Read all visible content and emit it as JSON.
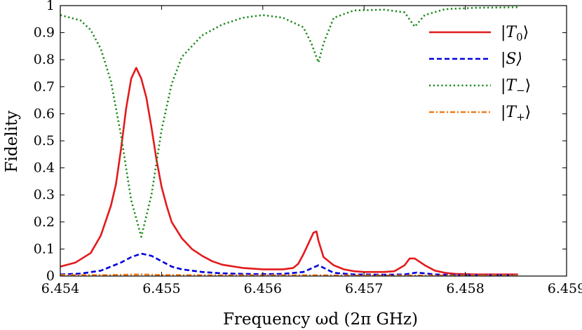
{
  "chart_data": {
    "type": "line",
    "title": "",
    "xlabel": "Frequency ωd (2π GHz)",
    "ylabel": "Fidelity",
    "xlim": [
      6.454,
      6.459
    ],
    "ylim": [
      0,
      1
    ],
    "xticks": [
      "6.454",
      "6.455",
      "6.456",
      "6.457",
      "6.458",
      "6.459"
    ],
    "yticks": [
      "0",
      "0.1",
      "0.2",
      "0.3",
      "0.4",
      "0.5",
      "0.6",
      "0.7",
      "0.8",
      "0.9",
      "1"
    ],
    "grid": false,
    "legend_position": "top-right",
    "series": [
      {
        "name": "|T0⟩",
        "legend_parts": [
          "|T",
          "0",
          "⟩"
        ],
        "color": "#e31a1c",
        "style": "solid",
        "x": [
          6.454,
          6.45415,
          6.4543,
          6.4544,
          6.4545,
          6.45455,
          6.4546,
          6.45465,
          6.4547,
          6.45475,
          6.4548,
          6.45485,
          6.4549,
          6.45495,
          6.455,
          6.45505,
          6.4551,
          6.4552,
          6.4553,
          6.4554,
          6.4555,
          6.4556,
          6.4558,
          6.456,
          6.4562,
          6.4563,
          6.45635,
          6.4564,
          6.45645,
          6.4565,
          6.45653,
          6.45655,
          6.4566,
          6.4567,
          6.4568,
          6.4569,
          6.457,
          6.4572,
          6.4573,
          6.4574,
          6.45745,
          6.4575,
          6.4576,
          6.4577,
          6.4578,
          6.4579,
          6.4581,
          6.4583,
          6.45852
        ],
        "y": [
          0.035,
          0.05,
          0.085,
          0.15,
          0.26,
          0.34,
          0.47,
          0.62,
          0.73,
          0.77,
          0.73,
          0.66,
          0.55,
          0.43,
          0.33,
          0.26,
          0.2,
          0.14,
          0.1,
          0.075,
          0.055,
          0.042,
          0.03,
          0.025,
          0.025,
          0.03,
          0.045,
          0.08,
          0.12,
          0.16,
          0.165,
          0.13,
          0.07,
          0.04,
          0.025,
          0.018,
          0.015,
          0.015,
          0.018,
          0.04,
          0.065,
          0.065,
          0.04,
          0.02,
          0.012,
          0.008,
          0.006,
          0.006,
          0.006
        ]
      },
      {
        "name": "|S⟩",
        "legend_parts": [
          "|S⟩",
          "",
          ""
        ],
        "color": "#0000dd",
        "style": "dashed",
        "x": [
          6.454,
          6.4542,
          6.4544,
          6.4546,
          6.4547,
          6.4548,
          6.4549,
          6.455,
          6.4551,
          6.4552,
          6.4554,
          6.4556,
          6.4558,
          6.456,
          6.4562,
          6.4564,
          6.45655,
          6.4567,
          6.4569,
          6.4572,
          6.4574,
          6.45752,
          6.4577,
          6.4579,
          6.4582,
          6.45852
        ],
        "y": [
          0.006,
          0.009,
          0.02,
          0.05,
          0.07,
          0.083,
          0.075,
          0.055,
          0.035,
          0.025,
          0.015,
          0.01,
          0.008,
          0.007,
          0.008,
          0.015,
          0.04,
          0.012,
          0.006,
          0.005,
          0.006,
          0.013,
          0.006,
          0.004,
          0.003,
          0.003
        ]
      },
      {
        "name": "|T−⟩",
        "legend_parts": [
          "|T",
          "−",
          "⟩"
        ],
        "color": "#1a8a1a",
        "style": "dotted",
        "x": [
          6.454,
          6.4542,
          6.4543,
          6.4544,
          6.4545,
          6.4546,
          6.4547,
          6.4548,
          6.4549,
          6.455,
          6.4551,
          6.4552,
          6.4554,
          6.4556,
          6.4558,
          6.456,
          6.4562,
          6.4564,
          6.45648,
          6.45655,
          6.4566,
          6.4567,
          6.4569,
          6.4572,
          6.4574,
          6.4575,
          6.4576,
          6.4578,
          6.4581,
          6.45852
        ],
        "y": [
          0.965,
          0.945,
          0.91,
          0.84,
          0.72,
          0.52,
          0.28,
          0.145,
          0.3,
          0.54,
          0.71,
          0.81,
          0.89,
          0.93,
          0.955,
          0.965,
          0.955,
          0.92,
          0.86,
          0.79,
          0.86,
          0.955,
          0.982,
          0.985,
          0.975,
          0.922,
          0.965,
          0.987,
          0.992,
          0.994
        ]
      },
      {
        "name": "|T+⟩",
        "legend_parts": [
          "|T",
          "+",
          "⟩"
        ],
        "color": "#f07a1a",
        "style": "dashdot",
        "x": [
          6.454,
          6.4545,
          6.4548,
          6.455,
          6.4555,
          6.456,
          6.4565,
          6.457,
          6.4575,
          6.458,
          6.45852
        ],
        "y": [
          0.004,
          0.004,
          0.006,
          0.004,
          0.003,
          0.003,
          0.003,
          0.002,
          0.002,
          0.002,
          0.002
        ]
      }
    ]
  }
}
